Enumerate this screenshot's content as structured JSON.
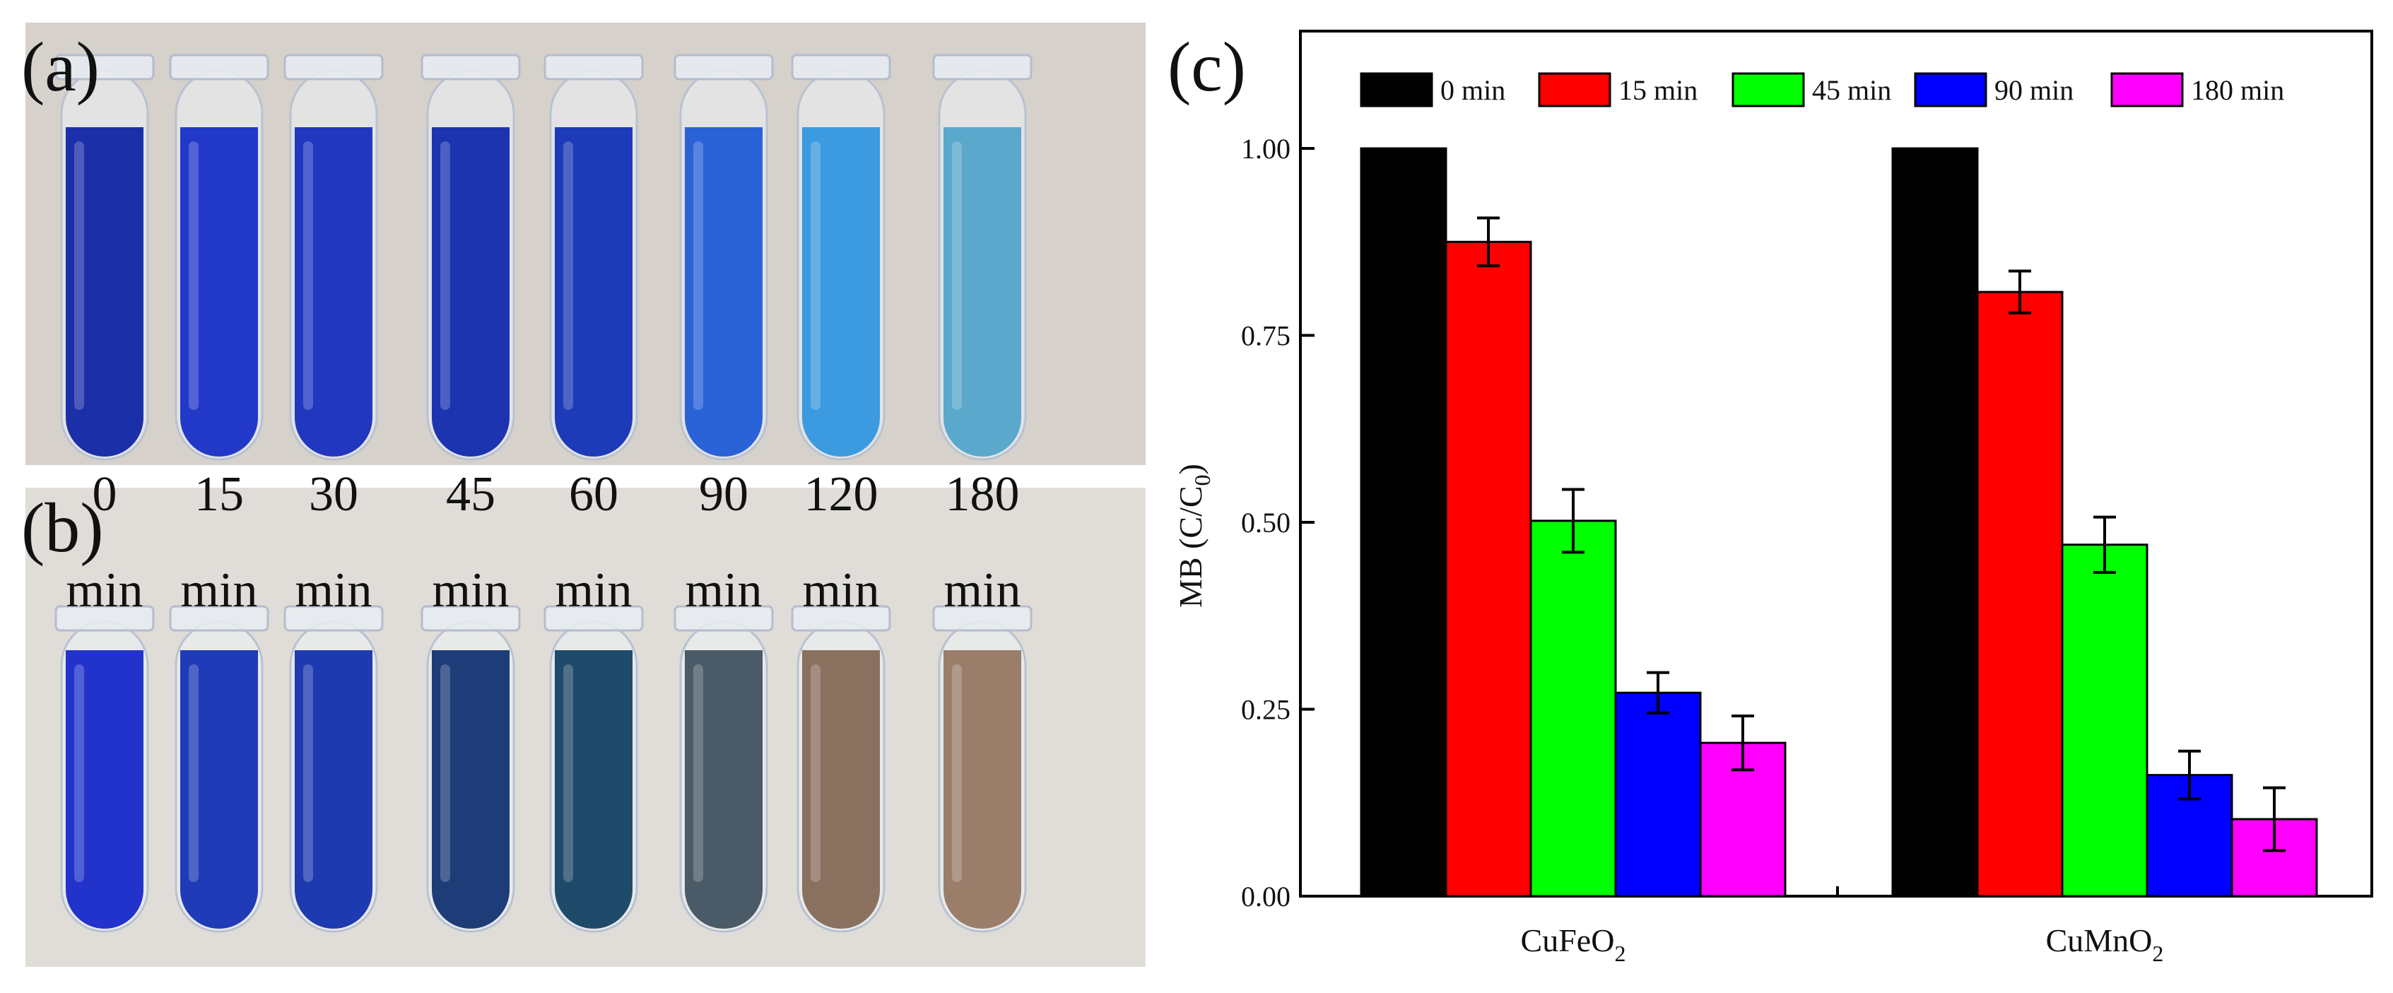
{
  "photos": {
    "a": {
      "letter": "(a)",
      "liquid_colors": [
        "#1b2fa8",
        "#2238c8",
        "#2237c0",
        "#1c34b0",
        "#1d3ab8",
        "#2a62d8",
        "#3b9ae0",
        "#5aa8cc"
      ]
    },
    "b": {
      "letter": "(b)",
      "liquid_colors": [
        "#2233cc",
        "#1f3bb8",
        "#1e3ab0",
        "#1d3c78",
        "#1f4a6a",
        "#4a5a66",
        "#8a705f",
        "#9a7e6a"
      ]
    },
    "time_numbers": [
      "0",
      "15",
      "30",
      "45",
      "60",
      "90",
      "120",
      "180"
    ],
    "time_unit": "min"
  },
  "chart_data": {
    "type": "bar",
    "panel_letter": "(c)",
    "ylabel": "MB (C/C",
    "ylabel_sub": "0",
    "ylabel_close": ")",
    "ylim": [
      0,
      1.0
    ],
    "yticks": [
      0.0,
      0.25,
      0.5,
      0.75,
      1.0
    ],
    "ytick_labels": [
      "0.00",
      "0.25",
      "0.50",
      "0.75",
      "1.00"
    ],
    "categories": [
      {
        "base": "CuFeO",
        "sub": "2"
      },
      {
        "base": "CuMnO",
        "sub": "2"
      }
    ],
    "legend_position": "top",
    "series": [
      {
        "name": "0 min",
        "color": "#000000",
        "values": [
          1.0,
          1.0
        ],
        "errors": [
          0,
          0
        ]
      },
      {
        "name": "15 min",
        "color": "#ff0000",
        "values": [
          0.875,
          0.808
        ],
        "errors": [
          0.032,
          0.028
        ]
      },
      {
        "name": "45 min",
        "color": "#00ff00",
        "values": [
          0.502,
          0.47
        ],
        "errors": [
          0.042,
          0.037
        ]
      },
      {
        "name": "90 min",
        "color": "#0000ff",
        "values": [
          0.272,
          0.162
        ],
        "errors": [
          0.027,
          0.032
        ]
      },
      {
        "name": "180 min",
        "color": "#ff00ff",
        "values": [
          0.205,
          0.103
        ],
        "errors": [
          0.036,
          0.042
        ]
      }
    ]
  }
}
